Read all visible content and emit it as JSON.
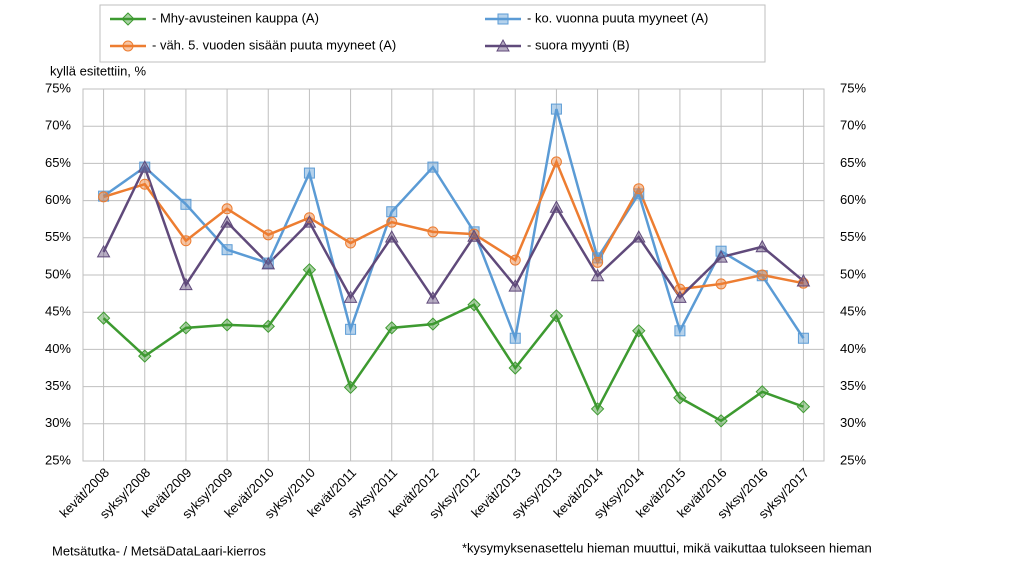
{
  "chart_data": {
    "type": "line",
    "y_label": "kyllä esitettiin, %",
    "footnote_left": "Metsätutka- / MetsäDataLaari-kierros",
    "footnote_right": "*kysymyksenasettelu hieman muuttui, mikä vaikuttaa tulokseen hieman",
    "categories": [
      "kevät/2008",
      "syksy/2008",
      "kevät/2009",
      "syksy/2009",
      "kevät/2010",
      "syksy/2010",
      "kevät/2011",
      "syksy/2011",
      "kevät/2012",
      "syksy/2012",
      "kevät/2013",
      "syksy/2013",
      "kevät/2014",
      "syksy/2014",
      "kevät/2015",
      "kevät/2016",
      "syksy/2016",
      "syksy/2017"
    ],
    "series": [
      {
        "name": "- Mhy-avusteinen kauppa (A)",
        "color": "#3d9a30",
        "marker": "diamond",
        "values": [
          44.2,
          39.1,
          42.9,
          43.3,
          43.1,
          50.7,
          34.9,
          42.9,
          43.4,
          46.0,
          37.5,
          44.5,
          32.0,
          42.5,
          33.5,
          30.4,
          34.3,
          32.3
        ]
      },
      {
        "name": "- ko. vuonna puuta myyneet (A)",
        "color": "#5b9bd5",
        "marker": "square",
        "values": [
          60.6,
          64.5,
          59.5,
          53.4,
          51.6,
          63.7,
          42.7,
          58.5,
          64.5,
          55.8,
          41.5,
          72.3,
          52.3,
          60.9,
          42.5,
          53.2,
          49.9,
          41.5
        ]
      },
      {
        "name": "- väh. 5. vuoden sisään puuta myyneet (A)",
        "color": "#ed7d31",
        "marker": "circle",
        "values": [
          60.5,
          62.2,
          54.6,
          58.9,
          55.4,
          57.7,
          54.3,
          57.1,
          55.8,
          55.5,
          52.0,
          65.2,
          51.7,
          61.6,
          48.1,
          48.8,
          50.0,
          48.9
        ]
      },
      {
        "name": "- suora myynti (B)",
        "color": "#604a7b",
        "marker": "triangle",
        "values": [
          53.1,
          64.5,
          48.7,
          57.1,
          51.5,
          57.1,
          47.0,
          55.1,
          46.9,
          55.2,
          48.5,
          59.1,
          49.9,
          55.1,
          47.0,
          52.4,
          53.8,
          49.2
        ]
      }
    ],
    "ylim": [
      25,
      75
    ],
    "yticks": [
      {
        "value": 25,
        "label": "25%"
      },
      {
        "value": 30,
        "label": "30%"
      },
      {
        "value": 35,
        "label": "35%"
      },
      {
        "value": 40,
        "label": "40%"
      },
      {
        "value": 45,
        "label": "45%"
      },
      {
        "value": 50,
        "label": "50%"
      },
      {
        "value": 55,
        "label": "55%"
      },
      {
        "value": 60,
        "label": "60%"
      },
      {
        "value": 65,
        "label": "65%"
      },
      {
        "value": 70,
        "label": "70%"
      },
      {
        "value": 75,
        "label": "75%"
      }
    ],
    "grid": true
  }
}
